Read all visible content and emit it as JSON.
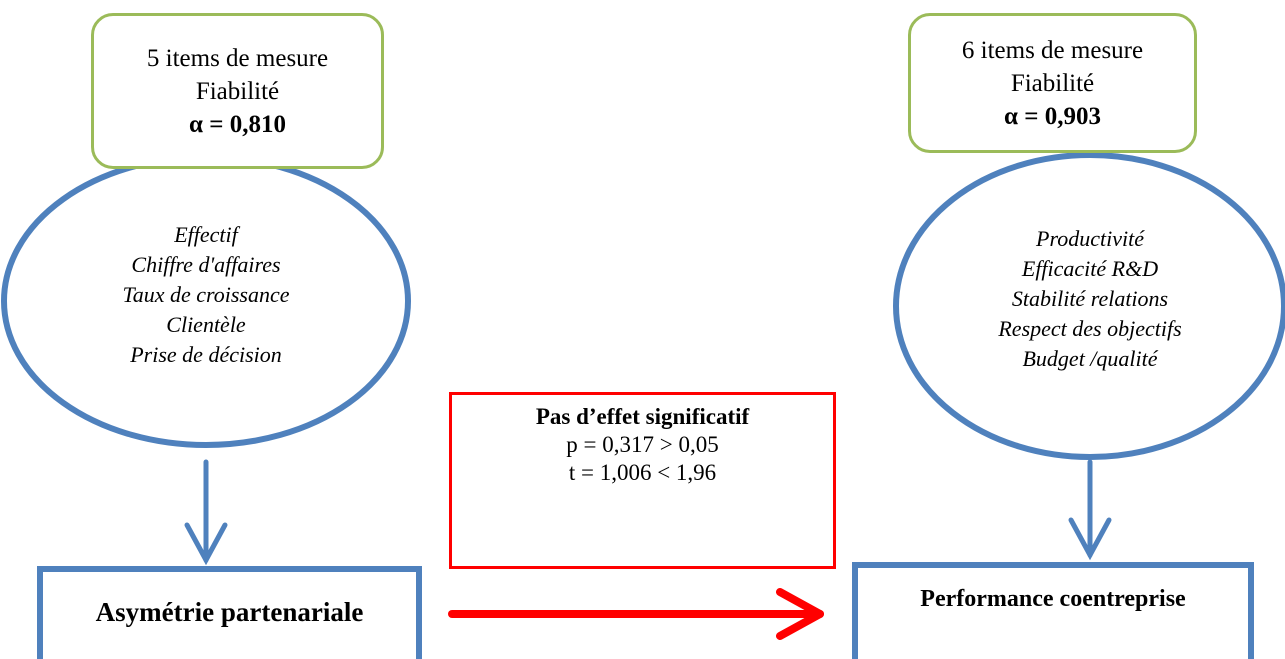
{
  "left": {
    "items_count": "5 items de mesure",
    "reliability_label": "Fiabilité",
    "alpha": "α = 0,810",
    "indicators": [
      "Effectif",
      "Chiffre d'affaires",
      "Taux de croissance",
      "Clientèle",
      "Prise de décision"
    ],
    "construct": "Asymétrie partenariale"
  },
  "right": {
    "items_count": "6 items de mesure",
    "reliability_label": "Fiabilité",
    "alpha": "α = 0,903",
    "indicators": [
      "Productivité",
      "Efficacité R&D",
      "Stabilité relations",
      "Respect des objectifs",
      "Budget /qualité"
    ],
    "construct": "Performance coentreprise"
  },
  "result": {
    "title": "Pas d’effet significatif",
    "p_line": "p = 0,317 > 0,05",
    "t_line": "t = 1,006 < 1,96"
  },
  "colors": {
    "green_border": "#9bbb59",
    "blue": "#4f81bd",
    "red": "#ff0000"
  }
}
